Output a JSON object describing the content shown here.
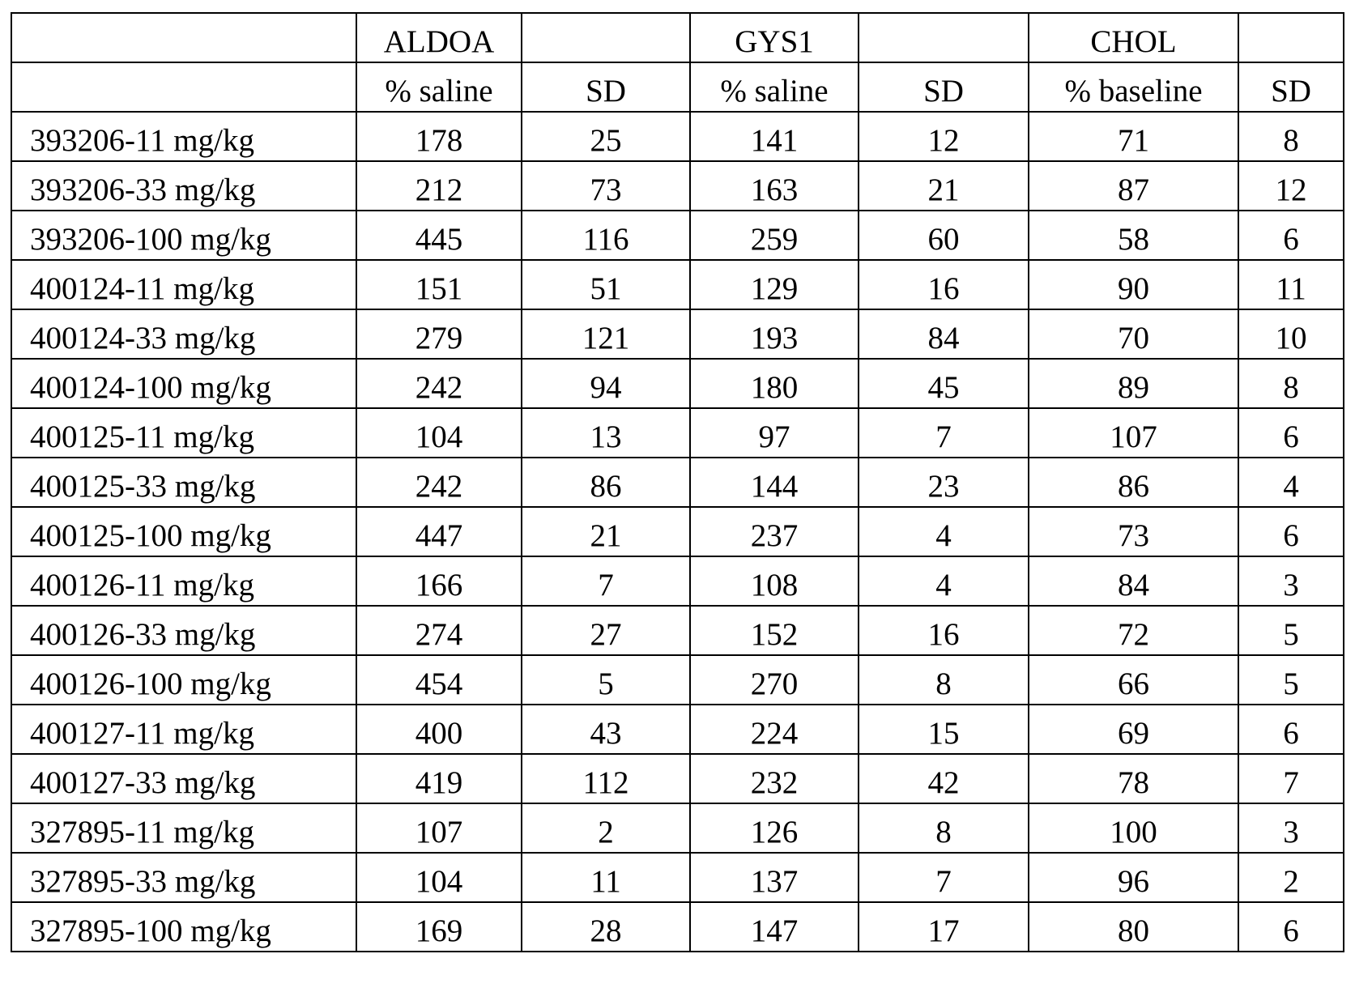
{
  "table": {
    "groups": [
      "ALDOA",
      "GYS1",
      "CHOL"
    ],
    "subheaders": [
      "% saline",
      "SD",
      "% saline",
      "SD",
      "% baseline",
      "SD"
    ],
    "rows": [
      {
        "label": "393206-11 mg/kg",
        "values": [
          178,
          25,
          141,
          12,
          71,
          8
        ]
      },
      {
        "label": "393206-33 mg/kg",
        "values": [
          212,
          73,
          163,
          21,
          87,
          12
        ]
      },
      {
        "label": "393206-100 mg/kg",
        "values": [
          445,
          116,
          259,
          60,
          58,
          6
        ]
      },
      {
        "label": "400124-11 mg/kg",
        "values": [
          151,
          51,
          129,
          16,
          90,
          11
        ]
      },
      {
        "label": "400124-33 mg/kg",
        "values": [
          279,
          121,
          193,
          84,
          70,
          10
        ]
      },
      {
        "label": "400124-100 mg/kg",
        "values": [
          242,
          94,
          180,
          45,
          89,
          8
        ]
      },
      {
        "label": "400125-11 mg/kg",
        "values": [
          104,
          13,
          97,
          7,
          107,
          6
        ]
      },
      {
        "label": "400125-33 mg/kg",
        "values": [
          242,
          86,
          144,
          23,
          86,
          4
        ]
      },
      {
        "label": "400125-100 mg/kg",
        "values": [
          447,
          21,
          237,
          4,
          73,
          6
        ]
      },
      {
        "label": "400126-11 mg/kg",
        "values": [
          166,
          7,
          108,
          4,
          84,
          3
        ]
      },
      {
        "label": "400126-33 mg/kg",
        "values": [
          274,
          27,
          152,
          16,
          72,
          5
        ]
      },
      {
        "label": "400126-100 mg/kg",
        "values": [
          454,
          5,
          270,
          8,
          66,
          5
        ]
      },
      {
        "label": "400127-11 mg/kg",
        "values": [
          400,
          43,
          224,
          15,
          69,
          6
        ]
      },
      {
        "label": "400127-33 mg/kg",
        "values": [
          419,
          112,
          232,
          42,
          78,
          7
        ]
      },
      {
        "label": "327895-11 mg/kg",
        "values": [
          107,
          2,
          126,
          8,
          100,
          3
        ]
      },
      {
        "label": "327895-33 mg/kg",
        "values": [
          104,
          11,
          137,
          7,
          96,
          2
        ]
      },
      {
        "label": "327895-100 mg/kg",
        "values": [
          169,
          28,
          147,
          17,
          80,
          6
        ]
      }
    ]
  }
}
